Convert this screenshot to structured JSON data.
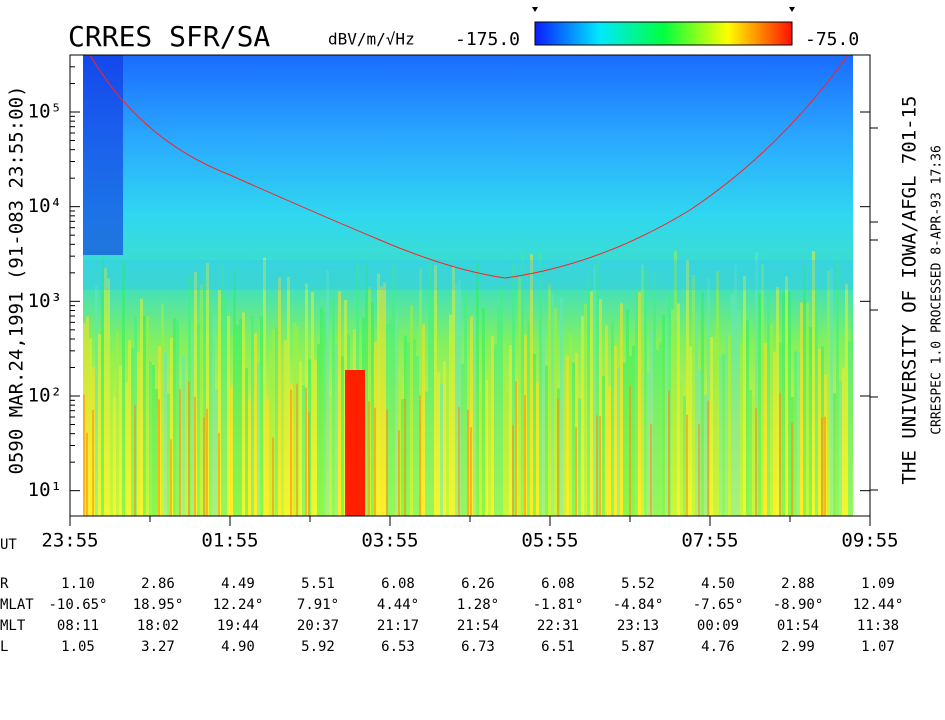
{
  "header": {
    "title": "CRRES SFR/SA",
    "units": "dBV/m/√Hz",
    "left_label": "0590 MAR.24,1991 (91-083 23:55:00)",
    "right_label": "THE UNIVERSITY OF IOWA/AFGL 701-15",
    "processing": "CRRESPEC 1.0 PROCESSED 8-APR-93 17:36"
  },
  "chart_data": {
    "type": "spectrogram",
    "colorbar": {
      "min": {
        "value": -175,
        "label": "-175.0"
      },
      "max": {
        "value": -75,
        "label": "-75.0"
      },
      "colors": [
        "#0a1cff",
        "#00e8ff",
        "#00ff40",
        "#ffff00",
        "#ff1000"
      ]
    },
    "y_log": true,
    "ylim": [
      5.4,
      400000
    ],
    "yticks": [
      {
        "value": 10,
        "label": "10¹"
      },
      {
        "value": 100,
        "label": "10²"
      },
      {
        "value": 1000,
        "label": "10³"
      },
      {
        "value": 10000,
        "label": "10⁴"
      },
      {
        "value": 100000,
        "label": "10⁵"
      }
    ],
    "x_label": "UT",
    "categories": [
      "23:55",
      "01:55",
      "03:55",
      "05:55",
      "07:55",
      "09:55"
    ]
  },
  "ephemeris": {
    "rows": [
      {
        "label": "R",
        "values": [
          "1.10",
          "2.86",
          "4.49",
          "5.51",
          "6.08",
          "6.26",
          "6.08",
          "5.52",
          "4.50",
          "2.88",
          "1.09"
        ]
      },
      {
        "label": "MLAT",
        "values": [
          "-10.65°",
          "18.95°",
          "12.24°",
          "7.91°",
          "4.44°",
          "1.28°",
          "-1.81°",
          "-4.84°",
          "-7.65°",
          "-8.90°",
          "12.44°"
        ]
      },
      {
        "label": "MLT",
        "values": [
          "08:11",
          "18:02",
          "19:44",
          "20:37",
          "21:17",
          "21:54",
          "22:31",
          "23:13",
          "00:09",
          "01:54",
          "11:38"
        ]
      },
      {
        "label": "L",
        "values": [
          "1.05",
          "3.27",
          "4.90",
          "5.92",
          "6.53",
          "6.73",
          "6.51",
          "5.87",
          "4.76",
          "2.99",
          "1.07"
        ]
      }
    ]
  }
}
